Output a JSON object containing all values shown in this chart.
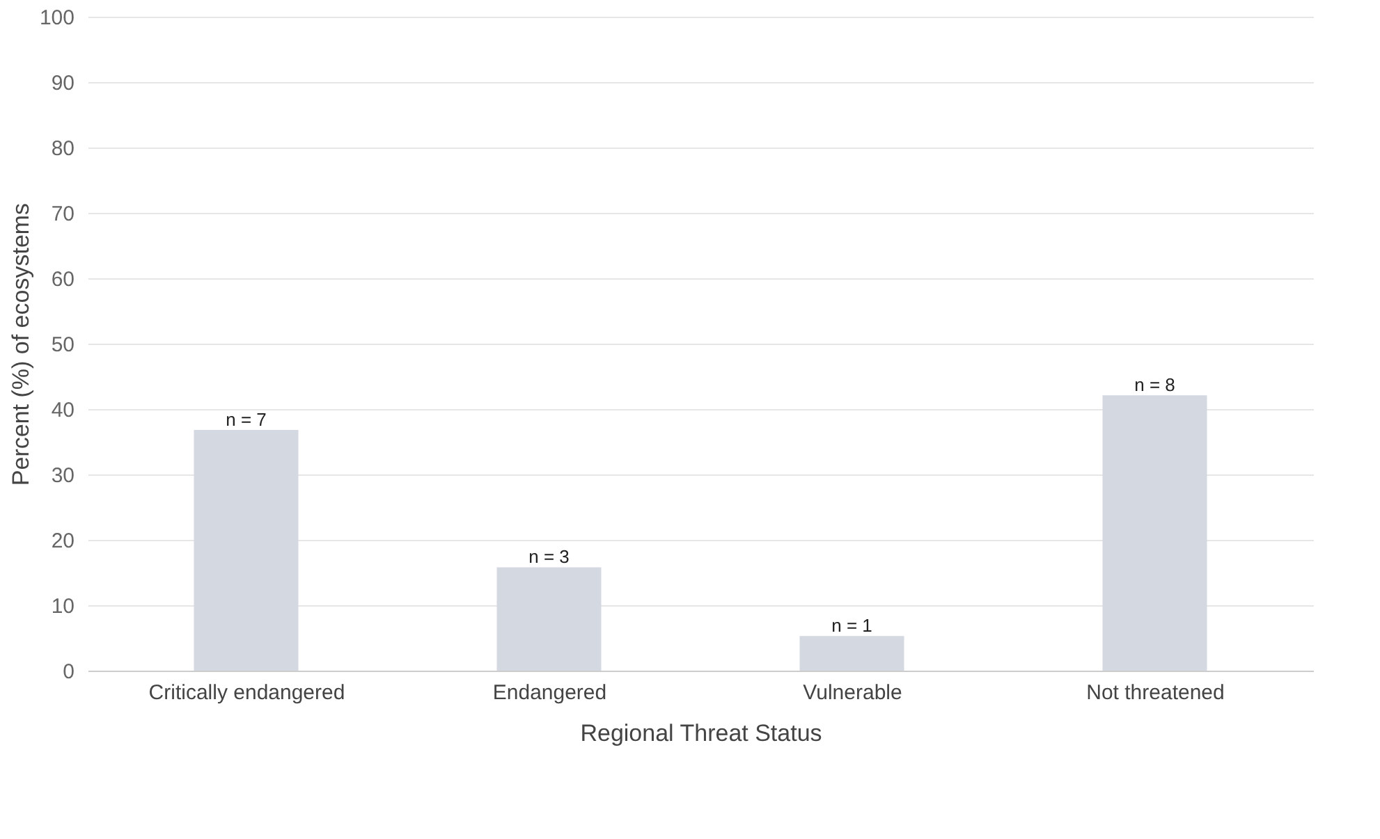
{
  "chart_data": {
    "type": "bar",
    "xlabel": "Regional Threat Status",
    "ylabel": "Percent (%) of ecosystems",
    "categories": [
      "Critically endangered",
      "Endangered",
      "Vulnerable",
      "Not threatened"
    ],
    "values": [
      36.8,
      15.8,
      5.3,
      42.1
    ],
    "annotations": [
      {
        "text": "n = 7",
        "x": "Critically endangered",
        "y": 36.8
      },
      {
        "text": "n = 3",
        "x": "Endangered",
        "y": 15.8
      },
      {
        "text": "n = 1",
        "x": "Vulnerable",
        "y": 5.3
      },
      {
        "text": "n = 8",
        "x": "Not threatened",
        "y": 42.1
      }
    ],
    "color": "#d3d8e1",
    "ylim": [
      0,
      100
    ],
    "yticks": [
      0,
      10,
      20,
      30,
      40,
      50,
      60,
      70,
      80,
      90,
      100
    ],
    "grid": "y"
  }
}
